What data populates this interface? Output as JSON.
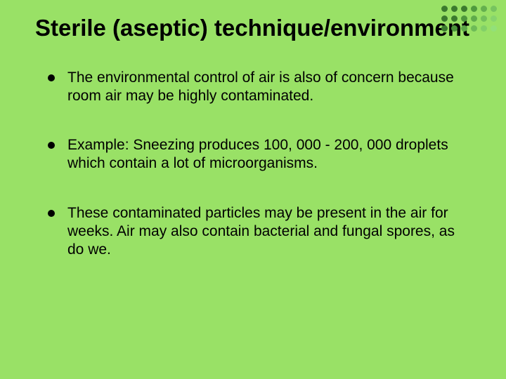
{
  "background_color": "#99e166",
  "title": "Sterile (aseptic) technique/environment",
  "title_fontsize": 33,
  "title_color": "#000000",
  "bullet_marker_color": "#000000",
  "bullet_fontsize": 21,
  "bullets": [
    "The environmental control of air is also of concern because room air may be highly contaminated.",
    "Example: Sneezing produces 100, 000 - 200, 000 droplets which contain a lot of microorganisms.",
    "These contaminated particles may be present in the air for weeks. Air may also contain bacterial and fungal spores, as do we."
  ],
  "corner_dots": {
    "rows": 3,
    "cols": 6,
    "dot_size": 9,
    "gap": 4,
    "colors": [
      [
        "#3b7a2e",
        "#3b7a2e",
        "#3b7a2e",
        "#4f9a3e",
        "#64b04e",
        "#77c45f"
      ],
      [
        "#3b7a2e",
        "#3b7a2e",
        "#4d963c",
        "#5fab4b",
        "#73c05b",
        "#87d46d"
      ],
      [
        "#3b7a2e",
        "#4a9139",
        "#5ca748",
        "#6ebb57",
        "#82d068",
        "#93e079"
      ]
    ]
  }
}
